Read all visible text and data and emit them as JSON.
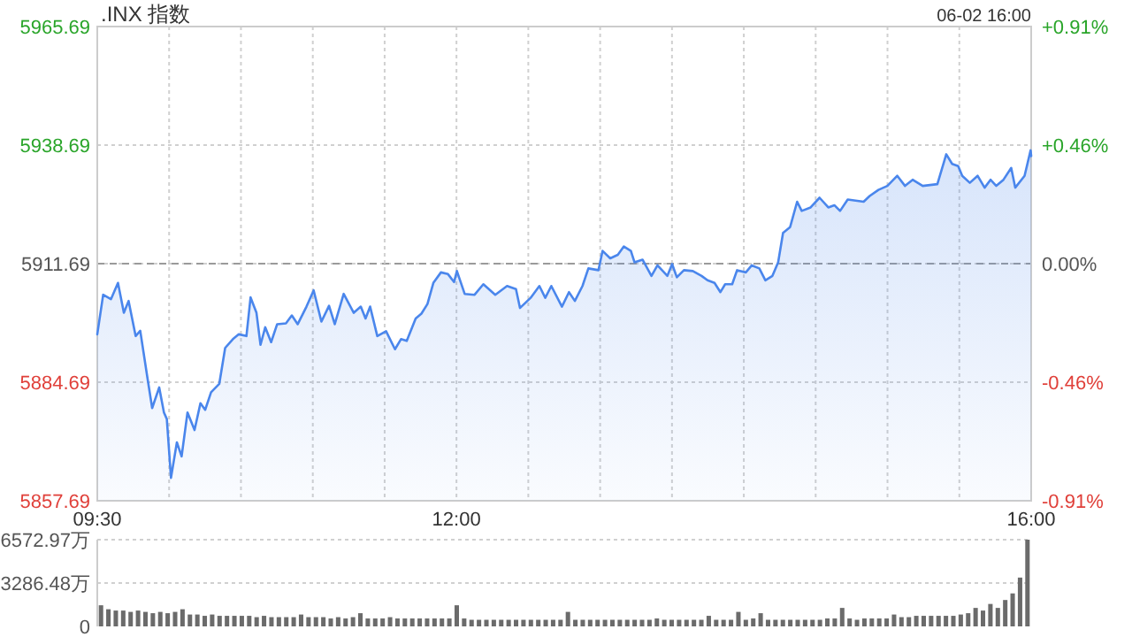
{
  "chart_data": [
    {
      "type": "area",
      "title": ".INX 指数",
      "subtitle": "06-02 16:00",
      "x": [
        9.5,
        9.541,
        9.595,
        9.644,
        9.685,
        9.718,
        9.767,
        9.799,
        9.848,
        9.882,
        9.931,
        9.964,
        9.984,
        10.013,
        10.054,
        10.087,
        10.128,
        10.177,
        10.218,
        10.251,
        10.292,
        10.349,
        10.39,
        10.444,
        10.485,
        10.538,
        10.567,
        10.608,
        10.636,
        10.669,
        10.71,
        10.752,
        10.813,
        10.854,
        10.895,
        10.956,
        11.006,
        11.06,
        11.113,
        11.153,
        11.215,
        11.285,
        11.334,
        11.367,
        11.399,
        11.449,
        11.51,
        11.572,
        11.614,
        11.654,
        11.716,
        11.756,
        11.798,
        11.839,
        11.892,
        11.941,
        11.983,
        12.003,
        12.057,
        12.126,
        12.187,
        12.27,
        12.352,
        12.414,
        12.442,
        12.516,
        12.577,
        12.618,
        12.66,
        12.734,
        12.783,
        12.824,
        12.877,
        12.918,
        12.988,
        13.017,
        13.07,
        13.123,
        13.165,
        13.214,
        13.239,
        13.295,
        13.357,
        13.399,
        13.468,
        13.501,
        13.534,
        13.583,
        13.645,
        13.706,
        13.747,
        13.796,
        13.837,
        13.87,
        13.919,
        13.953,
        14.014,
        14.055,
        14.108,
        14.15,
        14.199,
        14.239,
        14.273,
        14.322,
        14.371,
        14.403,
        14.465,
        14.527,
        14.588,
        14.63,
        14.67,
        14.723,
        14.834,
        14.876,
        14.937,
        14.999,
        15.068,
        15.122,
        15.175,
        15.245,
        15.347,
        15.409,
        15.45,
        15.492,
        15.52,
        15.573,
        15.627,
        15.676,
        15.717,
        15.757,
        15.807,
        15.861,
        15.889,
        15.954,
        15.996,
        16.0
      ],
      "series": [
        {
          "color": "#4a86ec",
          "values": [
            5895.6,
            5904.6,
            5903.6,
            5907.3,
            5900.5,
            5903.2,
            5895.2,
            5896.4,
            5885.9,
            5878.8,
            5883.5,
            5877.8,
            5876.3,
            5862.9,
            5871.0,
            5867.8,
            5877.8,
            5873.8,
            5879.9,
            5878.4,
            5882.4,
            5884.3,
            5892.5,
            5894.5,
            5895.6,
            5895.2,
            5904.0,
            5900.5,
            5893.2,
            5897.2,
            5893.8,
            5897.9,
            5898.1,
            5899.9,
            5897.9,
            5901.9,
            5905.6,
            5898.5,
            5902.1,
            5897.9,
            5904.8,
            5900.5,
            5901.9,
            5899.2,
            5901.9,
            5895.2,
            5896.3,
            5892.2,
            5894.5,
            5894.1,
            5899.2,
            5900.3,
            5902.5,
            5907.3,
            5909.7,
            5909.3,
            5907.5,
            5910.0,
            5904.8,
            5904.6,
            5907.0,
            5904.6,
            5906.6,
            5905.9,
            5901.6,
            5903.9,
            5906.6,
            5903.9,
            5906.6,
            5901.9,
            5905.2,
            5903.2,
            5906.6,
            5910.6,
            5910.2,
            5914.6,
            5912.9,
            5913.7,
            5915.6,
            5914.6,
            5912.0,
            5912.6,
            5908.9,
            5911.3,
            5908.9,
            5911.6,
            5908.6,
            5910.2,
            5910.0,
            5908.9,
            5907.9,
            5907.3,
            5905.2,
            5907.0,
            5907.0,
            5910.2,
            5909.7,
            5911.3,
            5910.6,
            5907.9,
            5908.9,
            5912.0,
            5918.7,
            5920.0,
            5925.8,
            5923.7,
            5924.5,
            5926.7,
            5924.5,
            5925.0,
            5923.7,
            5926.3,
            5925.8,
            5927.1,
            5928.5,
            5929.4,
            5931.7,
            5929.4,
            5930.8,
            5929.4,
            5929.8,
            5936.6,
            5934.4,
            5933.9,
            5931.7,
            5930.1,
            5931.7,
            5929.0,
            5930.8,
            5929.4,
            5930.8,
            5933.5,
            5929.0,
            5931.7,
            5937.5,
            5936.2
          ]
        }
      ],
      "xlim": [
        9.5,
        16.0
      ],
      "xticks": [
        {
          "value": 9.5,
          "label": "09:30"
        },
        {
          "value": 10.0,
          "label": null
        },
        {
          "value": 10.5,
          "label": null
        },
        {
          "value": 11.0,
          "label": null
        },
        {
          "value": 11.5,
          "label": null
        },
        {
          "value": 12.0,
          "label": "12:00"
        },
        {
          "value": 12.5,
          "label": null
        },
        {
          "value": 13.0,
          "label": null
        },
        {
          "value": 13.5,
          "label": null
        },
        {
          "value": 14.0,
          "label": null
        },
        {
          "value": 14.5,
          "label": null
        },
        {
          "value": 15.0,
          "label": null
        },
        {
          "value": 15.5,
          "label": null
        },
        {
          "value": 16.0,
          "label": "16:00"
        }
      ],
      "ylim": [
        5857.69,
        5965.69
      ],
      "yticks": [
        5857.69,
        5884.69,
        5911.69,
        5938.69,
        5965.69
      ],
      "y2lim": [
        -0.913,
        0.913
      ],
      "y2ticks": [
        {
          "value": -0.913,
          "label": "-0.91%"
        },
        {
          "value": -0.457,
          "label": "-0.46%"
        },
        {
          "value": 0,
          "label": "0.00%"
        },
        {
          "value": 0.457,
          "label": "+0.46%"
        },
        {
          "value": 0.913,
          "label": "+0.91%"
        }
      ],
      "ref_lines": [
        {
          "axis": "y",
          "value": 5911.69,
          "color": "#9a9a9a",
          "line_style": "dashed"
        }
      ],
      "grid": true
    },
    {
      "type": "bar",
      "categories": [
        null,
        null,
        null,
        null,
        null,
        null,
        null,
        null,
        null,
        null,
        null,
        null,
        null,
        null,
        null,
        null,
        null,
        null,
        null,
        null,
        null,
        null,
        null,
        null,
        null,
        null,
        null,
        null,
        null,
        null,
        null,
        null,
        null,
        null,
        null,
        null,
        null,
        null,
        null,
        null,
        null,
        null,
        null,
        null,
        null,
        null,
        null,
        null,
        null,
        null,
        null,
        null,
        null,
        null,
        null,
        null,
        null,
        null,
        null,
        null,
        null,
        null,
        null,
        null,
        null,
        null,
        null,
        null,
        null,
        null,
        null,
        null,
        null,
        null,
        null,
        null,
        null,
        null,
        null,
        null,
        null,
        null,
        null,
        null,
        null,
        null,
        null,
        null,
        null,
        null,
        null,
        null,
        null,
        null,
        null,
        null,
        null,
        null,
        null,
        null,
        null,
        null,
        null,
        null,
        null,
        null,
        null,
        null,
        null,
        null,
        null,
        null,
        null,
        null,
        null,
        null,
        null,
        null,
        null,
        null,
        null,
        null,
        null,
        null,
        null,
        null
      ],
      "series": [
        {
          "color": "#6b6b6b",
          "values": [
            1600,
            1300,
            1200,
            1200,
            1100,
            1200,
            1100,
            1000,
            1100,
            1000,
            1100,
            1300,
            900,
            900,
            800,
            900,
            800,
            800,
            800,
            800,
            800,
            700,
            800,
            700,
            700,
            700,
            700,
            900,
            700,
            700,
            700,
            600,
            700,
            600,
            700,
            1000,
            600,
            600,
            600,
            700,
            600,
            600,
            600,
            600,
            600,
            600,
            600,
            600,
            1600,
            600,
            500,
            500,
            500,
            500,
            500,
            500,
            500,
            500,
            500,
            500,
            500,
            500,
            500,
            1100,
            500,
            500,
            500,
            500,
            500,
            500,
            500,
            500,
            500,
            500,
            500,
            600,
            500,
            500,
            500,
            500,
            500,
            500,
            800,
            500,
            500,
            500,
            1100,
            500,
            600,
            1000,
            500,
            500,
            500,
            500,
            500,
            500,
            500,
            500,
            600,
            600,
            1400,
            600,
            500,
            600,
            600,
            600,
            600,
            900,
            700,
            700,
            800,
            800,
            800,
            800,
            800,
            800,
            900,
            1000,
            1400,
            1200,
            1700,
            1400,
            2000,
            2500,
            3700,
            6572.97
          ]
        }
      ],
      "ylim": [
        0,
        6572.97
      ],
      "yticks": [
        0,
        {
          "value": 3286.48,
          "label": "3286.48万"
        },
        {
          "value": 6572.97,
          "label": "6572.97万"
        }
      ],
      "tick_labels": "y",
      "grid": "y"
    }
  ]
}
